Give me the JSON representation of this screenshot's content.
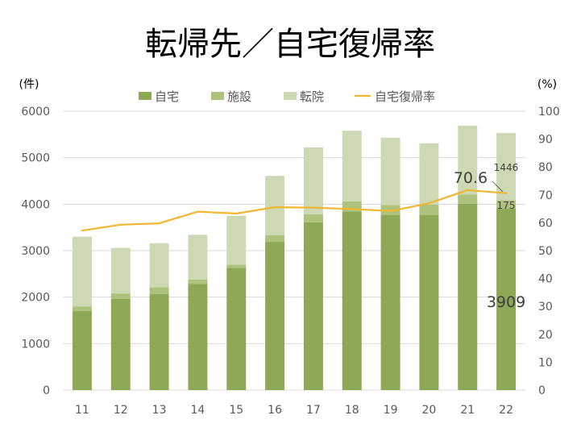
{
  "chart_data": {
    "type": "bar",
    "stacked": true,
    "title": "転帰先／自宅復帰率",
    "y_left_label": "(件)",
    "y_right_label": "(%)",
    "ylim_left": [
      0,
      6000
    ],
    "ylim_right": [
      0,
      100
    ],
    "y_left_ticks": [
      "0",
      "1000",
      "2000",
      "3000",
      "4000",
      "5000",
      "6000"
    ],
    "y_right_ticks": [
      "0",
      "10",
      "20",
      "30",
      "40",
      "50",
      "60",
      "70",
      "80",
      "90",
      "100"
    ],
    "categories": [
      "11",
      "12",
      "13",
      "14",
      "15",
      "16",
      "17",
      "18",
      "19",
      "20",
      "21",
      "22"
    ],
    "legend_position": "top",
    "grid": true,
    "series": [
      {
        "name": "自宅",
        "kind": "bar",
        "color": "#8ea956",
        "values": [
          1700,
          1960,
          2070,
          2280,
          2630,
          3190,
          3610,
          3840,
          3770,
          3770,
          4010,
          3909
        ]
      },
      {
        "name": "施設",
        "kind": "bar",
        "color": "#adc37d",
        "values": [
          100,
          120,
          140,
          100,
          70,
          140,
          170,
          220,
          210,
          220,
          200,
          175
        ]
      },
      {
        "name": "転院",
        "kind": "bar",
        "color": "#cdd9b5",
        "values": [
          1500,
          980,
          950,
          960,
          1050,
          1280,
          1440,
          1520,
          1450,
          1320,
          1480,
          1446
        ]
      },
      {
        "name": "自宅復帰率",
        "kind": "line",
        "axis": "right",
        "color": "#f0b731",
        "values": [
          57.2,
          59.3,
          59.8,
          64.0,
          63.3,
          65.6,
          65.4,
          64.9,
          64.2,
          67.0,
          71.7,
          70.6
        ]
      }
    ],
    "annotations": {
      "rate_label": "70.6",
      "home_label": "3909",
      "facility_label": "175",
      "transfer_label": "1446"
    },
    "colors": {
      "axis_text": "#595959",
      "grid": "#d9d9d9",
      "title": "#000000"
    }
  }
}
